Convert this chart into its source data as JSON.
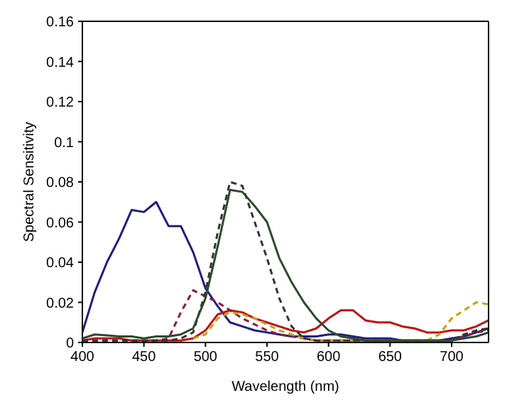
{
  "chart_data": {
    "type": "line",
    "xlabel": "Wavelength (nm)",
    "ylabel": "Spectral Sensitivity",
    "x": [
      400,
      410,
      420,
      430,
      440,
      450,
      460,
      470,
      480,
      490,
      500,
      510,
      520,
      530,
      540,
      550,
      560,
      570,
      580,
      590,
      600,
      610,
      620,
      630,
      640,
      650,
      660,
      670,
      680,
      690,
      700,
      710,
      720,
      730
    ],
    "series": [
      {
        "color": "#1f1f80",
        "line_style": "solid",
        "values": [
          0.005,
          0.025,
          0.04,
          0.052,
          0.066,
          0.065,
          0.07,
          0.058,
          0.058,
          0.045,
          0.027,
          0.018,
          0.01,
          0.008,
          0.006,
          0.005,
          0.004,
          0.003,
          0.003,
          0.003,
          0.004,
          0.004,
          0.003,
          0.002,
          0.002,
          0.002,
          0.001,
          0.001,
          0.001,
          0.001,
          0.002,
          0.003,
          0.005,
          0.007
        ]
      },
      {
        "color": "#8b1a4a",
        "line_style": "dashed",
        "values": [
          0.001,
          0.001,
          0.001,
          0.001,
          0.001,
          0.001,
          0.001,
          0.002,
          0.015,
          0.026,
          0.023,
          0.02,
          0.016,
          0.012,
          0.009,
          0.006,
          0.004,
          0.003,
          0.002,
          0.001,
          0.001,
          0.001,
          0.001,
          0.001,
          0.001,
          0.001,
          0.001,
          0.001,
          0.001,
          0.001,
          0.001,
          0.003,
          0.005,
          0.006
        ]
      },
      {
        "color": "#c01010",
        "line_style": "solid",
        "values": [
          0.001,
          0.002,
          0.002,
          0.002,
          0.001,
          0.001,
          0.001,
          0.001,
          0.001,
          0.002,
          0.006,
          0.014,
          0.016,
          0.015,
          0.012,
          0.01,
          0.008,
          0.006,
          0.005,
          0.007,
          0.012,
          0.016,
          0.016,
          0.011,
          0.01,
          0.01,
          0.008,
          0.007,
          0.005,
          0.005,
          0.006,
          0.006,
          0.008,
          0.011
        ]
      },
      {
        "color": "#c8a000",
        "line_style": "dashed",
        "values": [
          null,
          null,
          null,
          null,
          null,
          null,
          null,
          null,
          null,
          0.002,
          0.004,
          0.012,
          0.015,
          0.014,
          0.012,
          0.009,
          0.006,
          0.004,
          0.002,
          0.001,
          0.001,
          0.001,
          0.001,
          0.001,
          0.001,
          0.001,
          0.001,
          0.001,
          0.001,
          0.004,
          0.012,
          0.016,
          0.02,
          0.019
        ]
      },
      {
        "color": "#333333",
        "line_style": "dashed",
        "values": [
          0.001,
          0.001,
          0.001,
          0.001,
          0.001,
          0.001,
          0.001,
          0.001,
          0.002,
          0.005,
          0.025,
          0.055,
          0.08,
          0.078,
          0.06,
          0.042,
          0.022,
          0.008,
          0.002,
          0.001,
          0.001,
          0.001,
          0.001,
          0.001,
          0.001,
          0.001,
          0.001,
          0.001,
          0.001,
          0.001,
          0.001,
          0.004,
          0.006,
          0.007
        ]
      },
      {
        "color": "#2d4a2d",
        "line_style": "solid",
        "values": [
          0.002,
          0.004,
          0.0035,
          0.003,
          0.003,
          0.002,
          0.003,
          0.003,
          0.004,
          0.007,
          0.022,
          0.048,
          0.076,
          0.075,
          0.068,
          0.06,
          0.042,
          0.03,
          0.02,
          0.012,
          0.006,
          0.003,
          0.002,
          0.001,
          0.001,
          0.001,
          0.001,
          0.001,
          0.001,
          0.001,
          0.001,
          0.002,
          0.003,
          0.005
        ]
      }
    ],
    "xlim": [
      400,
      730
    ],
    "xticks": [
      400,
      450,
      500,
      550,
      600,
      650,
      700
    ],
    "ylim": [
      0,
      0.16
    ],
    "yticks": [
      0,
      0.02,
      0.04,
      0.06,
      0.08,
      {
        "value": 0.1,
        "label": "0.1"
      },
      0.12,
      0.14,
      0.16
    ],
    "grid": false,
    "legend": false,
    "marker": "none"
  }
}
